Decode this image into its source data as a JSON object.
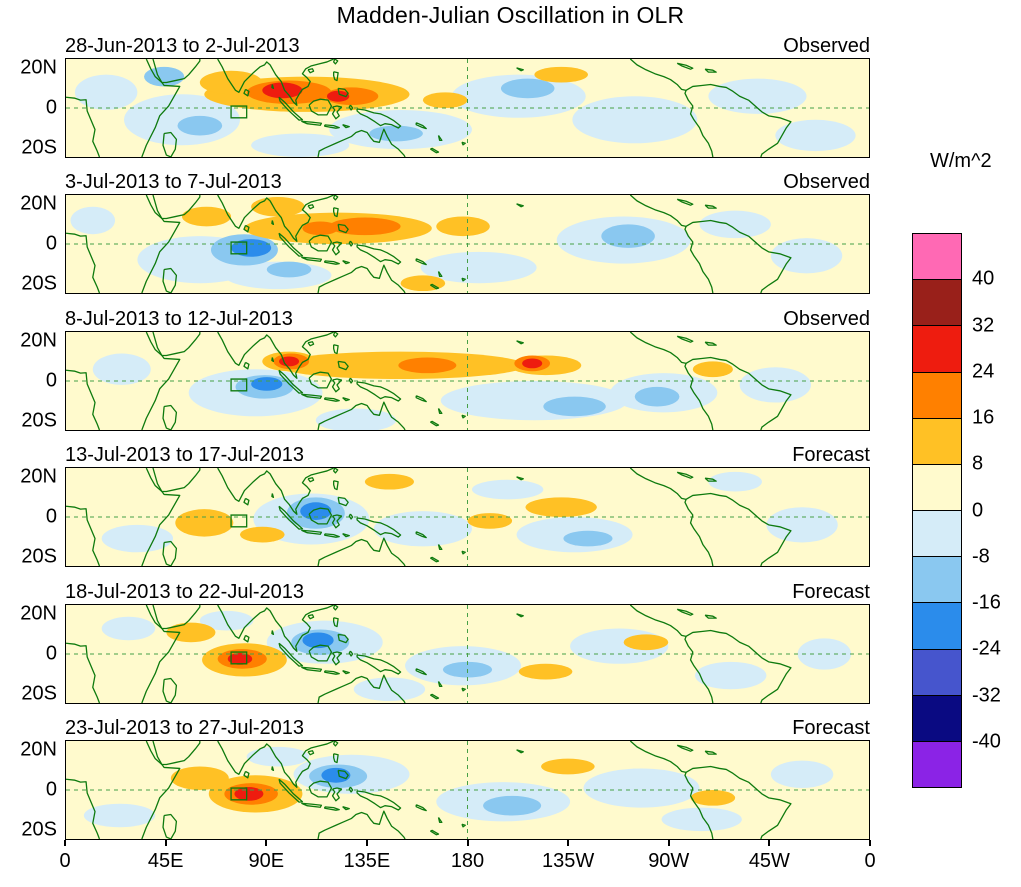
{
  "chart_data": {
    "type": "heatmap",
    "title": "Madden-Julian Oscillation in OLR",
    "units": "W/m^2",
    "x_axis": {
      "ticks": [
        "0",
        "45E",
        "90E",
        "135E",
        "180",
        "135W",
        "90W",
        "45W",
        "0"
      ],
      "range_deg_lon": [
        0,
        360
      ]
    },
    "y_axis": {
      "ticks": [
        "20N",
        "0",
        "20S"
      ],
      "range_deg_lat": [
        25,
        -25
      ]
    },
    "colorbar": {
      "unit_label": "W/m^2",
      "levels": [
        -40,
        -32,
        -24,
        -16,
        -8,
        0,
        8,
        16,
        24,
        32,
        40
      ],
      "colors": [
        "#8B23E6",
        "#0A0A82",
        "#4655CD",
        "#2B8CEB",
        "#8AC8F0",
        "#D5ECF8",
        "#FFFACD",
        "#FFC125",
        "#FF8000",
        "#EE1C0F",
        "#99201A",
        "#FF69B4"
      ]
    },
    "style": {
      "coast_color": "#0E7A0E",
      "dash_line_color": "#46A046",
      "frame_color": "#000000",
      "background_level_value": 4
    },
    "reference_box": {
      "lon_min": 74,
      "lon_max": 81,
      "lat_min": -5,
      "lat_max": 1
    },
    "anomaly_format": [
      "lon_deg_east",
      "lat_deg_north",
      "radius_lon_deg",
      "radius_lat_deg",
      "peak_olr_anomaly_w_m2"
    ],
    "dashed_lines": {
      "equator_lat": 0,
      "dateline_lon": 180
    },
    "panels": [
      {
        "period": "28-Jun-2013 to 2-Jul-2013",
        "source": "Observed",
        "anomalies": [
          [
            52,
            -6,
            26,
            13,
            -4
          ],
          [
            18,
            8,
            14,
            9,
            -4
          ],
          [
            150,
            -11,
            32,
            10,
            -4
          ],
          [
            203,
            6,
            30,
            11,
            -4
          ],
          [
            255,
            -6,
            28,
            12,
            -4
          ],
          [
            310,
            6,
            22,
            9,
            -4
          ],
          [
            336,
            -14,
            18,
            8,
            -4
          ],
          [
            105,
            -19,
            22,
            6,
            -4
          ],
          [
            44,
            16,
            9,
            5,
            -12
          ],
          [
            60,
            -9,
            10,
            5,
            -12
          ],
          [
            148,
            -13,
            12,
            4,
            -12
          ],
          [
            207,
            10,
            12,
            5,
            -12
          ],
          [
            108,
            7,
            46,
            9,
            12
          ],
          [
            74,
            13,
            14,
            6,
            12
          ],
          [
            170,
            4,
            10,
            4,
            12
          ],
          [
            222,
            17,
            12,
            4,
            12
          ],
          [
            100,
            8,
            19,
            6,
            20
          ],
          [
            128,
            6,
            12,
            4.5,
            20
          ],
          [
            97,
            9,
            9,
            4,
            28
          ],
          [
            122,
            6,
            5,
            2.8,
            28
          ]
        ]
      },
      {
        "period": "3-Jul-2013 to 7-Jul-2013",
        "source": "Observed",
        "anomalies": [
          [
            60,
            -8,
            28,
            12,
            -4
          ],
          [
            95,
            -16,
            24,
            7,
            -4
          ],
          [
            12,
            12,
            10,
            7,
            -4
          ],
          [
            185,
            -12,
            26,
            8,
            -4
          ],
          [
            250,
            2,
            30,
            12,
            -4
          ],
          [
            300,
            10,
            16,
            7,
            -4
          ],
          [
            332,
            -6,
            16,
            9,
            -4
          ],
          [
            80,
            -3,
            15,
            8,
            -12
          ],
          [
            100,
            -13,
            10,
            4,
            -12
          ],
          [
            252,
            4,
            12,
            6,
            -12
          ],
          [
            83,
            -2,
            9,
            4.5,
            -20
          ],
          [
            122,
            8,
            42,
            8,
            12
          ],
          [
            63,
            14,
            11,
            5,
            12
          ],
          [
            95,
            19,
            12,
            5,
            12
          ],
          [
            178,
            9,
            12,
            5,
            12
          ],
          [
            160,
            -20,
            10,
            4,
            12
          ],
          [
            134,
            9,
            16,
            4.5,
            20
          ],
          [
            114,
            8,
            8,
            3.5,
            20
          ]
        ]
      },
      {
        "period": "8-Jul-2013 to 12-Jul-2013",
        "source": "Observed",
        "anomalies": [
          [
            85,
            -6,
            30,
            12,
            -4
          ],
          [
            25,
            6,
            13,
            8,
            -4
          ],
          [
            210,
            -10,
            42,
            10,
            -4
          ],
          [
            268,
            -6,
            24,
            10,
            -4
          ],
          [
            318,
            -2,
            16,
            9,
            -4
          ],
          [
            130,
            -20,
            18,
            6,
            -4
          ],
          [
            89,
            -3,
            13,
            6,
            -12
          ],
          [
            228,
            -13,
            14,
            5,
            -12
          ],
          [
            265,
            -8,
            10,
            5,
            -12
          ],
          [
            90,
            -1.5,
            7,
            3.5,
            -20
          ],
          [
            150,
            8,
            56,
            7,
            12
          ],
          [
            100,
            10,
            12,
            5,
            12
          ],
          [
            215,
            8,
            16,
            5,
            12
          ],
          [
            290,
            6,
            9,
            4,
            12
          ],
          [
            101,
            10,
            8,
            4,
            20
          ],
          [
            162,
            8,
            13,
            4,
            20
          ],
          [
            209,
            9,
            8,
            4,
            20
          ],
          [
            100,
            10,
            4.5,
            2.5,
            28
          ],
          [
            209,
            9,
            4.5,
            2.5,
            28
          ]
        ]
      },
      {
        "period": "13-Jul-2013 to 17-Jul-2013",
        "source": "Forecast",
        "anomalies": [
          [
            110,
            -1,
            26,
            13,
            -4
          ],
          [
            160,
            -6,
            22,
            9,
            -4
          ],
          [
            228,
            -9,
            26,
            9,
            -4
          ],
          [
            32,
            -11,
            16,
            7,
            -4
          ],
          [
            330,
            -4,
            16,
            9,
            -4
          ],
          [
            198,
            14,
            16,
            5,
            -4
          ],
          [
            300,
            18,
            12,
            5,
            -4
          ],
          [
            112,
            2,
            13,
            8,
            -12
          ],
          [
            234,
            -11,
            11,
            4,
            -12
          ],
          [
            112,
            3,
            7,
            4.5,
            -20
          ],
          [
            62,
            -3,
            13,
            7,
            12
          ],
          [
            88,
            -9,
            10,
            4,
            12
          ],
          [
            222,
            5,
            16,
            5,
            12
          ],
          [
            145,
            18,
            11,
            4,
            12
          ],
          [
            190,
            -2,
            10,
            4,
            12
          ]
        ]
      },
      {
        "period": "18-Jul-2013 to 22-Jul-2013",
        "source": "Forecast",
        "anomalies": [
          [
            116,
            6,
            26,
            11,
            -4
          ],
          [
            178,
            -6,
            26,
            10,
            -4
          ],
          [
            248,
            4,
            22,
            9,
            -4
          ],
          [
            28,
            13,
            12,
            6,
            -4
          ],
          [
            298,
            -11,
            16,
            7,
            -4
          ],
          [
            340,
            0,
            12,
            8,
            -4
          ],
          [
            145,
            -18,
            16,
            6,
            -4
          ],
          [
            72,
            17,
            12,
            5,
            -4
          ],
          [
            114,
            6,
            13,
            6.5,
            -12
          ],
          [
            180,
            -8,
            11,
            4,
            -12
          ],
          [
            113,
            7,
            7,
            4,
            -20
          ],
          [
            80,
            -3,
            19,
            8.5,
            12
          ],
          [
            56,
            11,
            11,
            5,
            12
          ],
          [
            215,
            -9,
            12,
            4,
            12
          ],
          [
            260,
            6,
            10,
            4,
            12
          ],
          [
            79,
            -2.5,
            11,
            5,
            20
          ],
          [
            78,
            -2.5,
            5.5,
            3,
            28
          ]
        ]
      },
      {
        "period": "23-Jul-2013 to 27-Jul-2013",
        "source": "Forecast",
        "anomalies": [
          [
            128,
            8,
            26,
            10,
            -4
          ],
          [
            196,
            -6,
            30,
            10,
            -4
          ],
          [
            258,
            1,
            26,
            10,
            -4
          ],
          [
            24,
            -13,
            16,
            6,
            -4
          ],
          [
            330,
            8,
            14,
            7,
            -4
          ],
          [
            95,
            17,
            14,
            5,
            -4
          ],
          [
            285,
            -15,
            18,
            6,
            -4
          ],
          [
            122,
            7,
            13,
            6,
            -12
          ],
          [
            200,
            -8,
            13,
            5,
            -12
          ],
          [
            121,
            7.5,
            6.5,
            3.8,
            -20
          ],
          [
            85,
            -2,
            21,
            9.5,
            12
          ],
          [
            60,
            6,
            13,
            6,
            12
          ],
          [
            290,
            -4,
            10,
            4,
            12
          ],
          [
            225,
            12,
            12,
            4,
            12
          ],
          [
            83,
            -2,
            12,
            5.5,
            20
          ],
          [
            82,
            -2,
            6.5,
            3.5,
            28
          ]
        ]
      }
    ]
  }
}
